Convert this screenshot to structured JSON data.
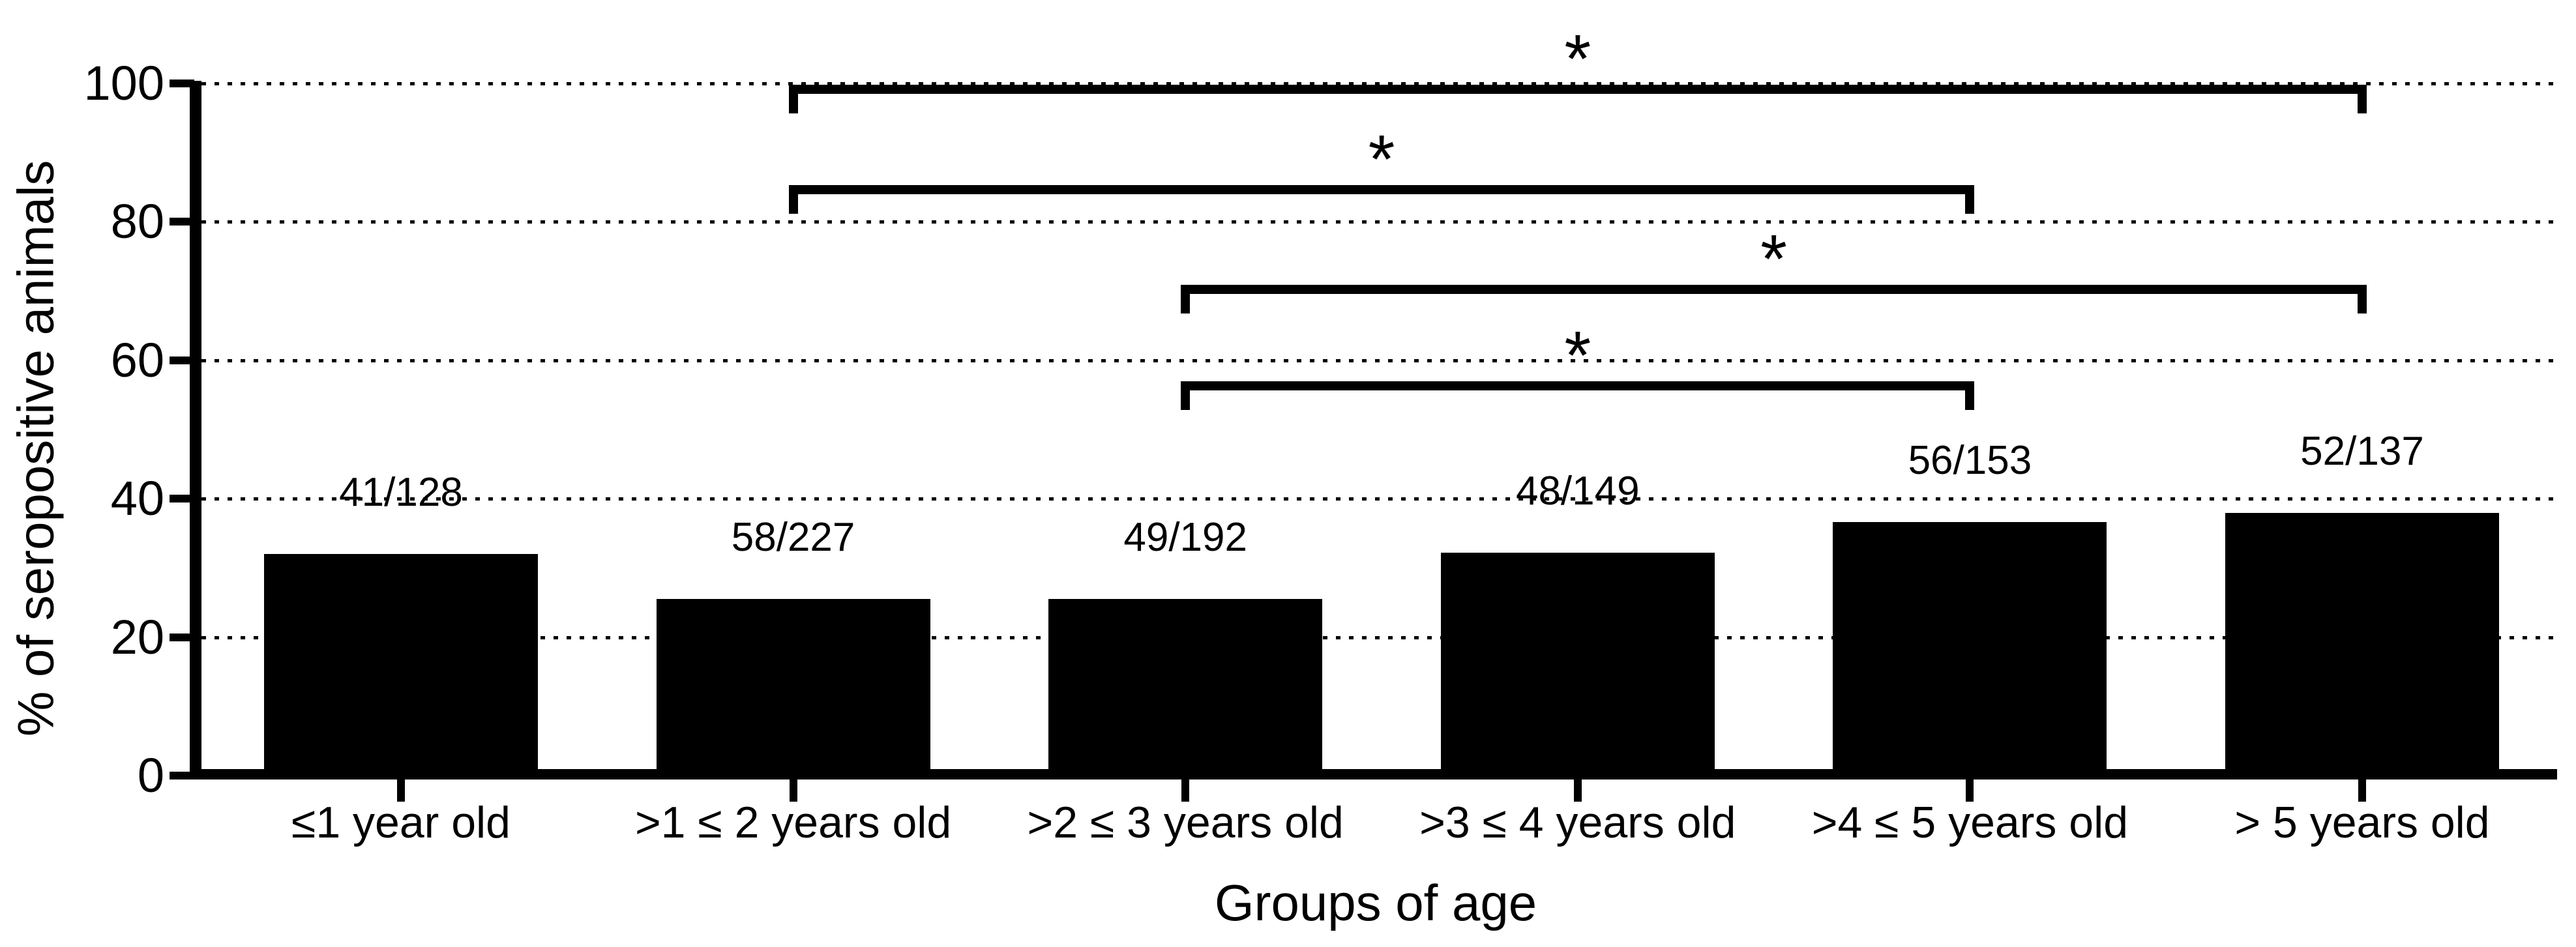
{
  "page": {
    "background_color": "#ffffff",
    "foreground_color": "#000000"
  },
  "chart_data": {
    "type": "bar",
    "title": "",
    "xlabel": "Groups of age",
    "ylabel": "% of seropositive animals",
    "ylim": [
      0,
      100
    ],
    "yticks": [
      0,
      20,
      40,
      60,
      80,
      100
    ],
    "ytick_labels": [
      "0",
      "20",
      "40",
      "60",
      "80",
      "100"
    ],
    "grid": "horizontal-dotted",
    "legend": "none",
    "bar_color": "#000000",
    "axis_color": "#000000",
    "categories": [
      "≤1 year old",
      ">1 ≤ 2 years old",
      ">2 ≤ 3 years old",
      ">3 ≤ 4 years old",
      ">4 ≤ 5 years old",
      "> 5 years old"
    ],
    "series": [
      {
        "name": "% of seropositive animals",
        "values": [
          32.03,
          25.55,
          25.52,
          32.21,
          36.6,
          37.96
        ]
      }
    ],
    "bar_count_labels": [
      "41/128",
      "58/227",
      "49/192",
      "48/149",
      "56/153",
      "52/137"
    ],
    "significance_brackets": [
      {
        "from_index": 1,
        "to_index": 5,
        "height_pct": 99.8,
        "symbol": "*"
      },
      {
        "from_index": 1,
        "to_index": 4,
        "height_pct": 85.3,
        "symbol": "*"
      },
      {
        "from_index": 2,
        "to_index": 5,
        "height_pct": 70.9,
        "symbol": "*"
      },
      {
        "from_index": 2,
        "to_index": 4,
        "height_pct": 57.0,
        "symbol": "*"
      }
    ]
  }
}
